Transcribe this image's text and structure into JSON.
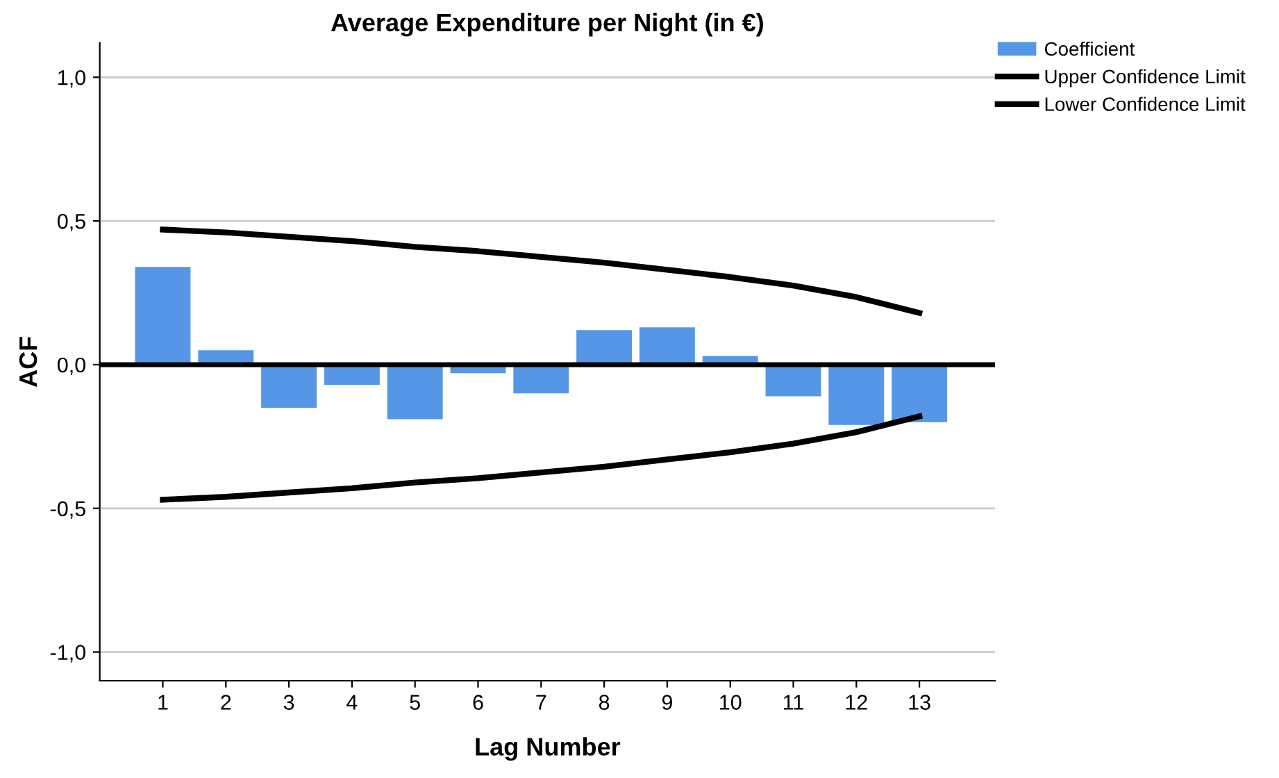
{
  "chart_data": {
    "type": "bar",
    "title": "Average Expenditure per Night (in €)",
    "xlabel": "Lag Number",
    "ylabel": "ACF",
    "categories": [
      "1",
      "2",
      "3",
      "4",
      "5",
      "6",
      "7",
      "8",
      "9",
      "10",
      "11",
      "12",
      "13"
    ],
    "series": [
      {
        "name": "Coefficient",
        "color": "#5597e6",
        "values": [
          0.34,
          0.05,
          -0.15,
          -0.07,
          -0.19,
          -0.03,
          -0.1,
          0.12,
          0.13,
          0.03,
          -0.11,
          -0.21,
          -0.2
        ]
      },
      {
        "name": "Upper Confidence Limit",
        "type": "line",
        "color": "#000000",
        "values": [
          0.47,
          0.46,
          0.445,
          0.43,
          0.41,
          0.395,
          0.375,
          0.355,
          0.33,
          0.305,
          0.275,
          0.235,
          0.18
        ]
      },
      {
        "name": "Lower Confidence Limit",
        "type": "line",
        "color": "#000000",
        "values": [
          -0.47,
          -0.46,
          -0.445,
          -0.43,
          -0.41,
          -0.395,
          -0.375,
          -0.355,
          -0.33,
          -0.305,
          -0.275,
          -0.235,
          -0.18
        ]
      }
    ],
    "ylim": [
      -1.1,
      1.12
    ],
    "yticks": [
      {
        "value": -1.0,
        "label": "-1,0"
      },
      {
        "value": -0.5,
        "label": "-0,5"
      },
      {
        "value": 0,
        "label": "0,0"
      },
      {
        "value": 0.5,
        "label": "0,5"
      },
      {
        "value": 1.0,
        "label": "1,0"
      }
    ],
    "ref_lines": [
      {
        "axis": "y",
        "value": 0,
        "color": "#000000"
      }
    ],
    "grid": "y",
    "legend": "top right",
    "marker": "none",
    "line_style": "solid"
  }
}
